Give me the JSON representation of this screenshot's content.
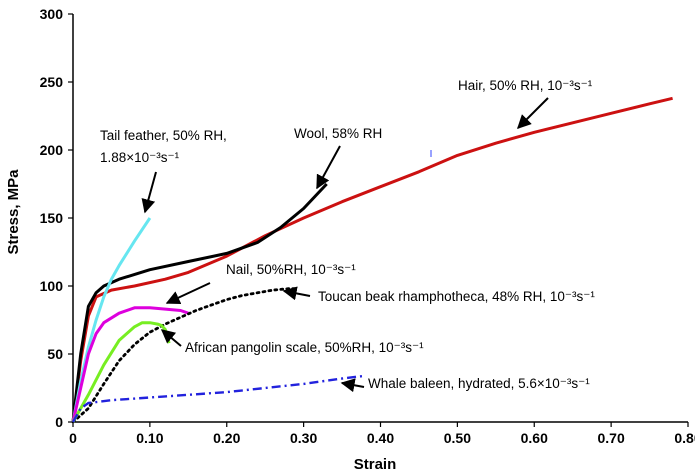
{
  "chart_data": {
    "type": "line",
    "xlabel": "Strain",
    "ylabel": "Stress, MPa",
    "xlim": [
      0,
      0.8
    ],
    "ylim": [
      0,
      300
    ],
    "x_ticks": [
      "0",
      "0.10",
      "0.20",
      "0.30",
      "0.40",
      "0.50",
      "0.60",
      "0.70",
      "0.80"
    ],
    "y_ticks": [
      "0",
      "50",
      "100",
      "150",
      "200",
      "250",
      "300"
    ],
    "grid": false,
    "legend": "none",
    "series": [
      {
        "name": "Hair, 50% RH, 10⁻³s⁻¹",
        "color": "#cc1111",
        "style": "solid",
        "x": [
          0,
          0.01,
          0.02,
          0.03,
          0.05,
          0.08,
          0.12,
          0.15,
          0.2,
          0.25,
          0.3,
          0.35,
          0.4,
          0.45,
          0.5,
          0.55,
          0.6,
          0.65,
          0.7,
          0.75,
          0.78
        ],
        "y": [
          0,
          45,
          78,
          92,
          97,
          100,
          105,
          110,
          122,
          137,
          150,
          162,
          173,
          184,
          196,
          205,
          213,
          220,
          227,
          234,
          238
        ]
      },
      {
        "name": "Wool, 58% RH",
        "color": "#000000",
        "style": "solid",
        "x": [
          0,
          0.01,
          0.02,
          0.03,
          0.04,
          0.06,
          0.1,
          0.15,
          0.2,
          0.24,
          0.27,
          0.3,
          0.33
        ],
        "y": [
          0,
          50,
          85,
          95,
          100,
          105,
          112,
          118,
          124,
          132,
          143,
          157,
          175
        ]
      },
      {
        "name": "Tail feather, 50% RH, 1.88×10⁻³s⁻¹",
        "color": "#66e6f0",
        "style": "solid",
        "x": [
          0,
          0.01,
          0.02,
          0.03,
          0.04,
          0.05,
          0.06,
          0.08,
          0.1
        ],
        "y": [
          0,
          30,
          55,
          75,
          92,
          105,
          115,
          133,
          150
        ]
      },
      {
        "name": "Nail, 50%RH, 10⁻³s⁻¹",
        "color": "#dd00dd",
        "style": "solid",
        "x": [
          0,
          0.01,
          0.02,
          0.03,
          0.04,
          0.06,
          0.08,
          0.1,
          0.12,
          0.14,
          0.15
        ],
        "y": [
          0,
          25,
          50,
          65,
          73,
          80,
          84,
          84,
          83,
          82,
          80
        ]
      },
      {
        "name": "Toucan beak rhamphotheca, 48% RH, 10⁻³s⁻¹",
        "color": "#000000",
        "style": "dotted",
        "x": [
          0,
          0.02,
          0.04,
          0.06,
          0.08,
          0.1,
          0.12,
          0.14,
          0.16,
          0.18,
          0.2,
          0.22,
          0.24,
          0.26,
          0.28,
          0.29
        ],
        "y": [
          0,
          10,
          28,
          45,
          57,
          66,
          72,
          77,
          82,
          86,
          90,
          93,
          95,
          97,
          98,
          98
        ]
      },
      {
        "name": "African pangolin scale, 50%RH, 10⁻³s⁻¹",
        "color": "#77ee22",
        "style": "solid",
        "x": [
          0,
          0.02,
          0.04,
          0.06,
          0.08,
          0.09,
          0.1,
          0.11,
          0.115,
          0.12,
          0.125
        ],
        "y": [
          0,
          20,
          42,
          60,
          70,
          73,
          73,
          72,
          71,
          68,
          58
        ]
      },
      {
        "name": "Whale baleen, hydrated, 5.6×10⁻³s⁻¹",
        "color": "#2222dd",
        "style": "dashdot",
        "x": [
          0,
          0.01,
          0.02,
          0.05,
          0.1,
          0.15,
          0.2,
          0.25,
          0.3,
          0.35,
          0.38
        ],
        "y": [
          0,
          10,
          14,
          16,
          18,
          20,
          22,
          25,
          28,
          32,
          34
        ]
      }
    ]
  }
}
